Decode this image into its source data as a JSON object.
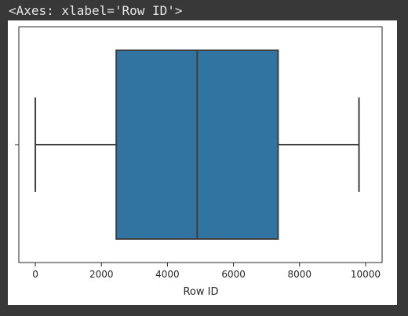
{
  "output": {
    "repr": "<Axes: xlabel='Row ID'>"
  },
  "chart_data": {
    "type": "box",
    "orientation": "horizontal",
    "xlabel": "Row ID",
    "ylabel": "",
    "xlim": [
      -500,
      10500
    ],
    "xticks": [
      0,
      2000,
      4000,
      6000,
      8000,
      10000
    ],
    "xtick_labels": [
      "0",
      "2000",
      "4000",
      "6000",
      "8000",
      "10000"
    ],
    "grid": false,
    "box": {
      "whisker_low": 0,
      "q1": 2450,
      "median": 4900,
      "q3": 7350,
      "whisker_high": 9800
    },
    "colors": {
      "box_fill": "#3274a1",
      "line": "#3f3f3f"
    }
  }
}
